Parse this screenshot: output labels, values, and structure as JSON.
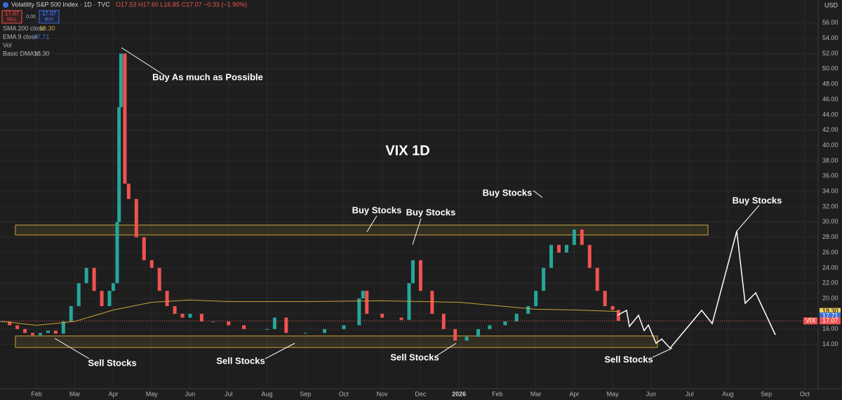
{
  "chart_data": {
    "type": "candle-line",
    "symbol": "Volatility S&P 500 Index · 1D · TVC",
    "ohlc": "O17.53 H17.60 L16.85 C17.07 −0.33 (−1.90%)",
    "sell_price": "17.07",
    "sell": "SELL",
    "spread": "0.00",
    "buy_price": "17.07",
    "buy": "BUY",
    "indicators": [
      "SMA 200 close",
      "EMA 9 close",
      "Vol",
      "Basic DMA's"
    ],
    "indicator_values": [
      "18.30",
      "17.71",
      "",
      "18.30"
    ],
    "currency": "USD",
    "title": "VIX 1D",
    "x": [
      0.1,
      0.3,
      0.5,
      0.7,
      0.9,
      1.1,
      1.3,
      1.5,
      1.7,
      1.9,
      2.1,
      2.3,
      2.5,
      2.7,
      2.9,
      3.0,
      3.1,
      3.15,
      3.2,
      3.3,
      3.4,
      3.6,
      3.8,
      4.0,
      4.2,
      4.4,
      4.6,
      4.8,
      5.0,
      5.3,
      5.6,
      6.0,
      6.4,
      7.0,
      7.2,
      7.5,
      8.0,
      8.5,
      9.0,
      9.4,
      9.5,
      9.6,
      10.0,
      10.5,
      10.7,
      10.8,
      11.0,
      11.3,
      11.6,
      11.9,
      12.2,
      12.5,
      12.8,
      13.2,
      13.5,
      13.8,
      14.0,
      14.2,
      14.4,
      14.6,
      14.8,
      15.0,
      15.2,
      15.4,
      15.6,
      15.8,
      16.0,
      16.15
    ],
    "series": [
      {
        "name": "VIX",
        "color_up": "#26a69a",
        "color_down": "#ef5350",
        "values": [
          17,
          16.5,
          16,
          15.5,
          15.2,
          15.5,
          15.8,
          15.4,
          17,
          19,
          22,
          24,
          21,
          19,
          21,
          22,
          30,
          45,
          52,
          35,
          33,
          28,
          25,
          24,
          21,
          19,
          18,
          17.5,
          18,
          17,
          17,
          16.5,
          16,
          16,
          17.5,
          15.5,
          15.5,
          16,
          16.5,
          20,
          21,
          18,
          17.5,
          17.2,
          22,
          25,
          21,
          18,
          16,
          14.5,
          15,
          16,
          16.5,
          17,
          18,
          19,
          21,
          24,
          27,
          26,
          27,
          29,
          27,
          24,
          21,
          19,
          18.5,
          17.07
        ]
      },
      {
        "name": "SMA 200 close",
        "color": "#c9a43a",
        "x": [
          0.1,
          1,
          2,
          3,
          4,
          5,
          6,
          8,
          10,
          12,
          14,
          15,
          16.15
        ],
        "values": [
          17,
          16.5,
          17,
          18.5,
          19.5,
          19.8,
          19.6,
          19.6,
          19.7,
          19.5,
          18.6,
          18.5,
          18.3
        ]
      }
    ],
    "zones": [
      {
        "from": 28.3,
        "to": 29.6
      },
      {
        "from": 13.6,
        "to": 15.1
      }
    ],
    "price_tags": [
      {
        "value": 18.3,
        "label": "18.30"
      },
      {
        "value": 17.71,
        "label": "17.71"
      },
      {
        "value": 17.07,
        "label": "17.07"
      }
    ],
    "price_tag_symbol": "VIX",
    "annotations": [
      "Buy As much as Possible",
      "Buy Stocks",
      "Buy Stocks",
      "Buy Stocks",
      "Buy Stocks",
      "Sell Stocks",
      "Sell Stocks",
      "Sell Stocks",
      "Sell Stocks"
    ],
    "xlim": [
      0.05,
      21.35
    ],
    "ylim": [
      8.2,
      59
    ],
    "xticks": [
      {
        "value": 1,
        "label": "Feb"
      },
      {
        "value": 2,
        "label": "Mar"
      },
      {
        "value": 3,
        "label": "Apr"
      },
      {
        "value": 4,
        "label": "May"
      },
      {
        "value": 5,
        "label": "Jun"
      },
      {
        "value": 6,
        "label": "Jul"
      },
      {
        "value": 7,
        "label": "Aug"
      },
      {
        "value": 8,
        "label": "Sep"
      },
      {
        "value": 9,
        "label": "Oct"
      },
      {
        "value": 10,
        "label": "Nov"
      },
      {
        "value": 11,
        "label": "Dec"
      },
      {
        "value": 12,
        "label": "2026"
      },
      {
        "value": 13,
        "label": "Feb"
      },
      {
        "value": 14,
        "label": "Mar"
      },
      {
        "value": 15,
        "label": "Apr"
      },
      {
        "value": 16,
        "label": "May"
      },
      {
        "value": 17,
        "label": "Jun"
      },
      {
        "value": 18,
        "label": "Jul"
      },
      {
        "value": 19,
        "label": "Aug"
      },
      {
        "value": 20,
        "label": "Sep"
      },
      {
        "value": 21,
        "label": "Oct"
      }
    ],
    "yticks": [
      {
        "value": 14,
        "label": "14.00"
      },
      {
        "value": 16,
        "label": "16.00"
      },
      {
        "value": 18,
        "label": "18.00"
      },
      {
        "value": 20,
        "label": "20.00"
      },
      {
        "value": 22,
        "label": "22.00"
      },
      {
        "value": 24,
        "label": "24.00"
      },
      {
        "value": 26,
        "label": "26.00"
      },
      {
        "value": 28,
        "label": "28.00"
      },
      {
        "value": 30,
        "label": "30.00"
      },
      {
        "value": 32,
        "label": "32.00"
      },
      {
        "value": 34,
        "label": "34.00"
      },
      {
        "value": 36,
        "label": "36.00"
      },
      {
        "value": 38,
        "label": "38.00"
      },
      {
        "value": 40,
        "label": "40.00"
      },
      {
        "value": 42,
        "label": "42.00"
      },
      {
        "value": 44,
        "label": "44.00"
      },
      {
        "value": 46,
        "label": "46.00"
      },
      {
        "value": 48,
        "label": "48.00"
      },
      {
        "value": 50,
        "label": "50.00"
      },
      {
        "value": 52,
        "label": "52.00"
      },
      {
        "value": 54,
        "label": "54.00"
      },
      {
        "value": 56,
        "label": "56.00"
      }
    ],
    "grid": true
  }
}
